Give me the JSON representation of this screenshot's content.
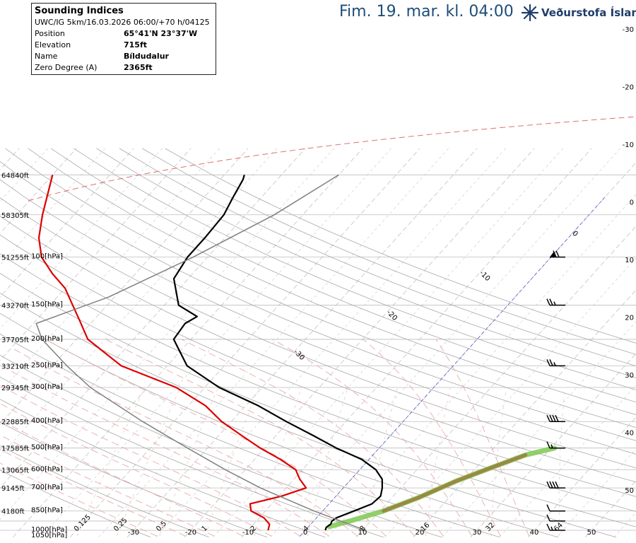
{
  "header": {
    "title": "Fim. 19. mar. kl. 04:00",
    "brand": "Veðurstofa Íslands",
    "brand_color": "#1f3d6b",
    "logo_icon": "snowflake-icon"
  },
  "infobox": {
    "title": "Sounding Indices",
    "run": "UWC/IG 5km/16.03.2026 06:00/+70 h/04125",
    "rows": [
      {
        "label": "Position",
        "value": "65°41'N 23°37'W"
      },
      {
        "label": "Elevation",
        "value": "715ft"
      },
      {
        "label": "Name",
        "value": "Bíldudalur"
      },
      {
        "label": "Zero Degree (A)",
        "value": "2365ft"
      }
    ]
  },
  "chart_data": {
    "type": "line",
    "chart_kind": "skew-T log-P sounding",
    "pressure_levels": [
      {
        "hPa": 1050,
        "label": "1050[hPa]",
        "ft": null
      },
      {
        "hPa": 1000,
        "label": "1000[hPa]",
        "ft": null
      },
      {
        "hPa": 850,
        "label": "850[hPa]",
        "ft": "4180ft"
      },
      {
        "hPa": 700,
        "label": "700[hPa]",
        "ft": "9145ft"
      },
      {
        "hPa": 600,
        "label": "600[hPa]",
        "ft": "13065ft"
      },
      {
        "hPa": 500,
        "label": "500[hPa]",
        "ft": "17585ft"
      },
      {
        "hPa": 400,
        "label": "400[hPa]",
        "ft": "22885ft"
      },
      {
        "hPa": 300,
        "label": "300[hPa]",
        "ft": "29345ft"
      },
      {
        "hPa": 250,
        "label": "250[hPa]",
        "ft": "33210ft"
      },
      {
        "hPa": 200,
        "label": "200[hPa]",
        "ft": "37705ft"
      },
      {
        "hPa": 150,
        "label": "150[hPa]",
        "ft": "43270ft"
      },
      {
        "hPa": 100,
        "label": "100[hPa]",
        "ft": "51255ft"
      },
      {
        "hPa": 70,
        "label": "",
        "ft": "58305ft"
      },
      {
        "hPa": 50,
        "label": "",
        "ft": "64840ft"
      }
    ],
    "temperature_axis": {
      "ticks": [
        -30,
        -20,
        -10,
        0,
        10,
        20,
        30,
        40,
        50
      ],
      "unit": "°C"
    },
    "right_ticks": [
      -30,
      -20,
      -10,
      0,
      10,
      20,
      30,
      40,
      50
    ],
    "isotherm_labels": [
      -30,
      -20,
      -10,
      0,
      10,
      20,
      30
    ],
    "mixing_ratio_labels": [
      "0.125",
      "0.25",
      "0.5",
      "1",
      "2",
      "4",
      "8",
      "16",
      "32",
      "64"
    ],
    "series": [
      {
        "kind": "temperature",
        "color": "#000000",
        "points": [
          [
            1000,
            3.5
          ],
          [
            975,
            3.2
          ],
          [
            950,
            3.5
          ],
          [
            925,
            3.2
          ],
          [
            900,
            3.5
          ],
          [
            850,
            5.5
          ],
          [
            800,
            7.5
          ],
          [
            750,
            7.8
          ],
          [
            700,
            6.8
          ],
          [
            650,
            5.4
          ],
          [
            600,
            2.8
          ],
          [
            550,
            -1.3
          ],
          [
            500,
            -7.5
          ],
          [
            450,
            -13.5
          ],
          [
            400,
            -20.4
          ],
          [
            350,
            -27.8
          ],
          [
            300,
            -37.5
          ],
          [
            250,
            -46.5
          ],
          [
            200,
            -53.0
          ],
          [
            175,
            -53.5
          ],
          [
            165,
            -52.5
          ],
          [
            150,
            -57.5
          ],
          [
            120,
            -62.5
          ],
          [
            100,
            -63.5
          ],
          [
            85,
            -63.5
          ],
          [
            70,
            -63.8
          ],
          [
            60,
            -65.0
          ],
          [
            52,
            -66.0
          ],
          [
            50,
            -66.5
          ]
        ]
      },
      {
        "kind": "dewpoint",
        "color": "#dd0000",
        "points": [
          [
            1000,
            -6.5
          ],
          [
            950,
            -7.2
          ],
          [
            900,
            -9.2
          ],
          [
            850,
            -12.5
          ],
          [
            800,
            -13.8
          ],
          [
            750,
            -9.5
          ],
          [
            700,
            -6.5
          ],
          [
            650,
            -9.0
          ],
          [
            600,
            -11.2
          ],
          [
            550,
            -15.5
          ],
          [
            500,
            -20.8
          ],
          [
            450,
            -26.0
          ],
          [
            400,
            -31.7
          ],
          [
            350,
            -37.0
          ],
          [
            300,
            -45.0
          ],
          [
            250,
            -58.0
          ],
          [
            200,
            -68.0
          ],
          [
            170,
            -72.5
          ],
          [
            150,
            -76.0
          ],
          [
            130,
            -80.0
          ],
          [
            115,
            -84.5
          ],
          [
            100,
            -89.0
          ],
          [
            85,
            -92.5
          ],
          [
            70,
            -95.5
          ],
          [
            50,
            -100.0
          ]
        ]
      },
      {
        "kind": "parcel",
        "color": "#808080",
        "points": [
          [
            1000,
            10.5
          ],
          [
            850,
            -1.5
          ],
          [
            700,
            -14.5
          ],
          [
            600,
            -23.5
          ],
          [
            500,
            -33.5
          ],
          [
            400,
            -45.5
          ],
          [
            300,
            -60.0
          ],
          [
            250,
            -67.5
          ],
          [
            200,
            -76.0
          ],
          [
            175,
            -79.5
          ],
          [
            140,
            -71.0
          ],
          [
            100,
            -62.5
          ],
          [
            70,
            -55.0
          ],
          [
            50,
            -50.0
          ]
        ]
      },
      {
        "kind": "freezing-level",
        "color": "#e07070",
        "style": "dashed",
        "temp_c": 0
      },
      {
        "kind": "tropopause",
        "color": "#e07070",
        "style": "dashed",
        "hPa_range": [
          175,
          135
        ]
      },
      {
        "kind": "moisture-band",
        "color": "#7ec850",
        "hPa_range": [
          950,
          500
        ]
      }
    ],
    "winds": [
      {
        "hPa": 1000,
        "speed_kt": 15,
        "dir_deg": 200
      },
      {
        "hPa": 925,
        "speed_kt": 10,
        "dir_deg": 210
      },
      {
        "hPa": 850,
        "speed_kt": 10,
        "dir_deg": 230
      },
      {
        "hPa": 700,
        "speed_kt": 40,
        "dir_deg": 260
      },
      {
        "hPa": 500,
        "speed_kt": 15,
        "dir_deg": 260
      },
      {
        "hPa": 400,
        "speed_kt": 40,
        "dir_deg": 260
      },
      {
        "hPa": 250,
        "speed_kt": 25,
        "dir_deg": 260
      },
      {
        "hPa": 150,
        "speed_kt": 25,
        "dir_deg": 260
      },
      {
        "hPa": 100,
        "speed_kt": 70,
        "dir_deg": 260
      }
    ],
    "title": "",
    "xlabel": "",
    "ylabel": ""
  }
}
